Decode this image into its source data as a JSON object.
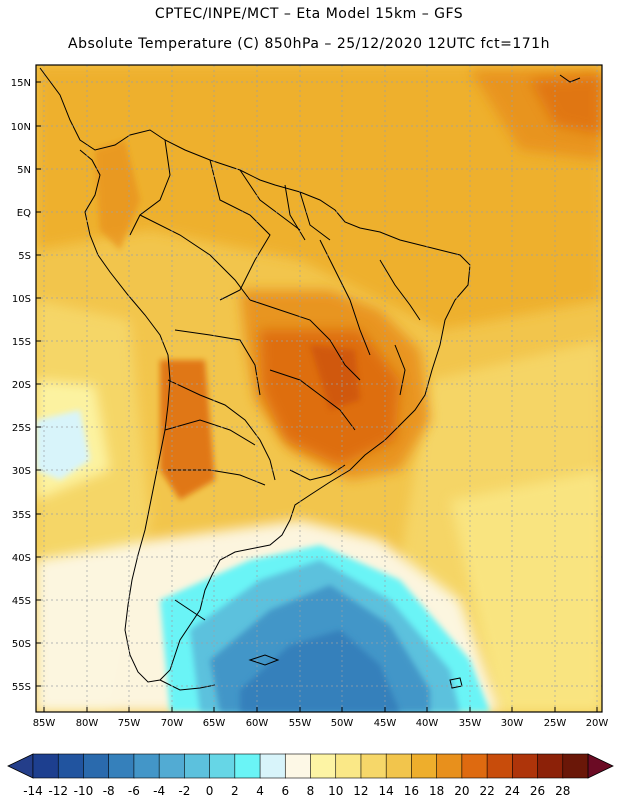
{
  "header": {
    "line1": "CPTEC/INPE/MCT –   Eta Model 15km – GFS",
    "line2": "Absolute Temperature (C) 850hPa – 25/12/2020 12UTC fct=171h"
  },
  "map": {
    "lat_labels": [
      "15N",
      "10N",
      "5N",
      "EQ",
      "5S",
      "10S",
      "15S",
      "20S",
      "25S",
      "30S",
      "35S",
      "40S",
      "45S",
      "50S",
      "55S"
    ],
    "lon_labels": [
      "85W",
      "80W",
      "75W",
      "70W",
      "65W",
      "60W",
      "55W",
      "50W",
      "45W",
      "40W",
      "35W",
      "30W",
      "25W",
      "20W"
    ]
  },
  "colorbar": {
    "labels": [
      "-14",
      "-12",
      "-10",
      "-8",
      "-6",
      "-4",
      "-2",
      "0",
      "2",
      "4",
      "6",
      "8",
      "10",
      "12",
      "14",
      "16",
      "18",
      "20",
      "22",
      "24",
      "26",
      "28"
    ],
    "colors": [
      "#1d3f8f",
      "#21549f",
      "#2a6aad",
      "#3580bb",
      "#4396c8",
      "#52abd3",
      "#5cc1dd",
      "#66d6e6",
      "#6af4f6",
      "#d8f4fa",
      "#fdf8e6",
      "#fdf4a4",
      "#fae887",
      "#f6d769",
      "#f2c54c",
      "#eeae2c",
      "#e8901c",
      "#de6a10",
      "#c84c0b",
      "#ae340a",
      "#8c2108",
      "#6a1708"
    ],
    "under_color": "#243e8a",
    "over_color": "#6b0b24"
  }
}
